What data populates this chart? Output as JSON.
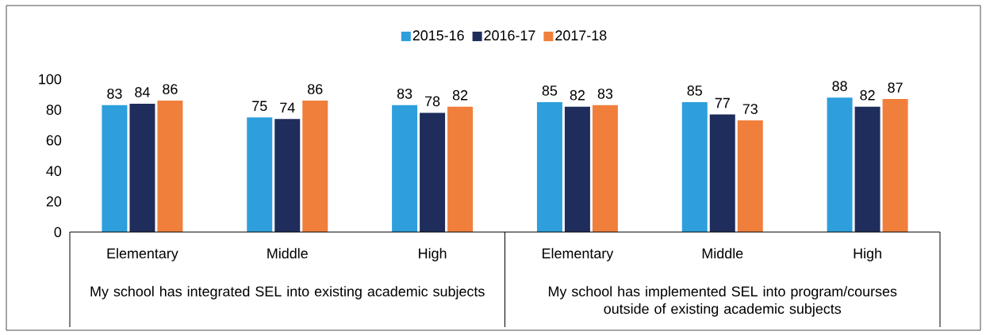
{
  "chart_data": {
    "type": "bar",
    "categories": [
      "Elementary",
      "Middle",
      "High",
      "Elementary",
      "Middle",
      "High"
    ],
    "series": [
      {
        "name": "2015-16",
        "color": "#2e9fdc",
        "values": [
          83,
          75,
          83,
          85,
          85,
          88
        ]
      },
      {
        "name": "2016-17",
        "color": "#1f2d5c",
        "values": [
          84,
          74,
          78,
          82,
          77,
          82
        ]
      },
      {
        "name": "2017-18",
        "color": "#f07f3c",
        "values": [
          86,
          86,
          82,
          83,
          73,
          87
        ]
      }
    ],
    "ylim": [
      0,
      100
    ],
    "yticks": [
      0,
      20,
      40,
      60,
      80,
      100
    ],
    "data_labels": true,
    "legend": "top",
    "annotations": [
      "My school has integrated SEL into existing academic subjects",
      "My school has implemented SEL into program/courses outside of existing academic subjects"
    ]
  }
}
